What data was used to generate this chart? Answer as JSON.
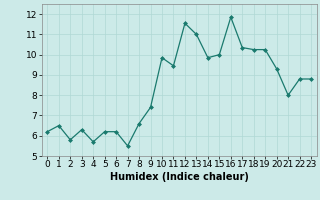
{
  "x": [
    0,
    1,
    2,
    3,
    4,
    5,
    6,
    7,
    8,
    9,
    10,
    11,
    12,
    13,
    14,
    15,
    16,
    17,
    18,
    19,
    20,
    21,
    22,
    23
  ],
  "y": [
    6.2,
    6.5,
    5.8,
    6.3,
    5.7,
    6.2,
    6.2,
    5.5,
    6.6,
    7.4,
    9.85,
    9.45,
    11.55,
    11.0,
    9.85,
    10.0,
    11.85,
    10.35,
    10.25,
    10.25,
    9.3,
    8.0,
    8.8,
    8.8
  ],
  "line_color": "#1a7a6e",
  "marker": "D",
  "marker_size": 2,
  "bg_color": "#cceae8",
  "grid_color": "#b0d8d5",
  "xlabel": "Humidex (Indice chaleur)",
  "ylim": [
    5,
    12.5
  ],
  "xlim": [
    -0.5,
    23.5
  ],
  "yticks": [
    5,
    6,
    7,
    8,
    9,
    10,
    11,
    12
  ],
  "xtick_labels": [
    "0",
    "1",
    "2",
    "3",
    "4",
    "5",
    "6",
    "7",
    "8",
    "9",
    "10",
    "11",
    "12",
    "13",
    "14",
    "15",
    "16",
    "17",
    "18",
    "19",
    "20",
    "21",
    "22",
    "23"
  ],
  "label_fontsize": 7,
  "tick_fontsize": 6.5
}
